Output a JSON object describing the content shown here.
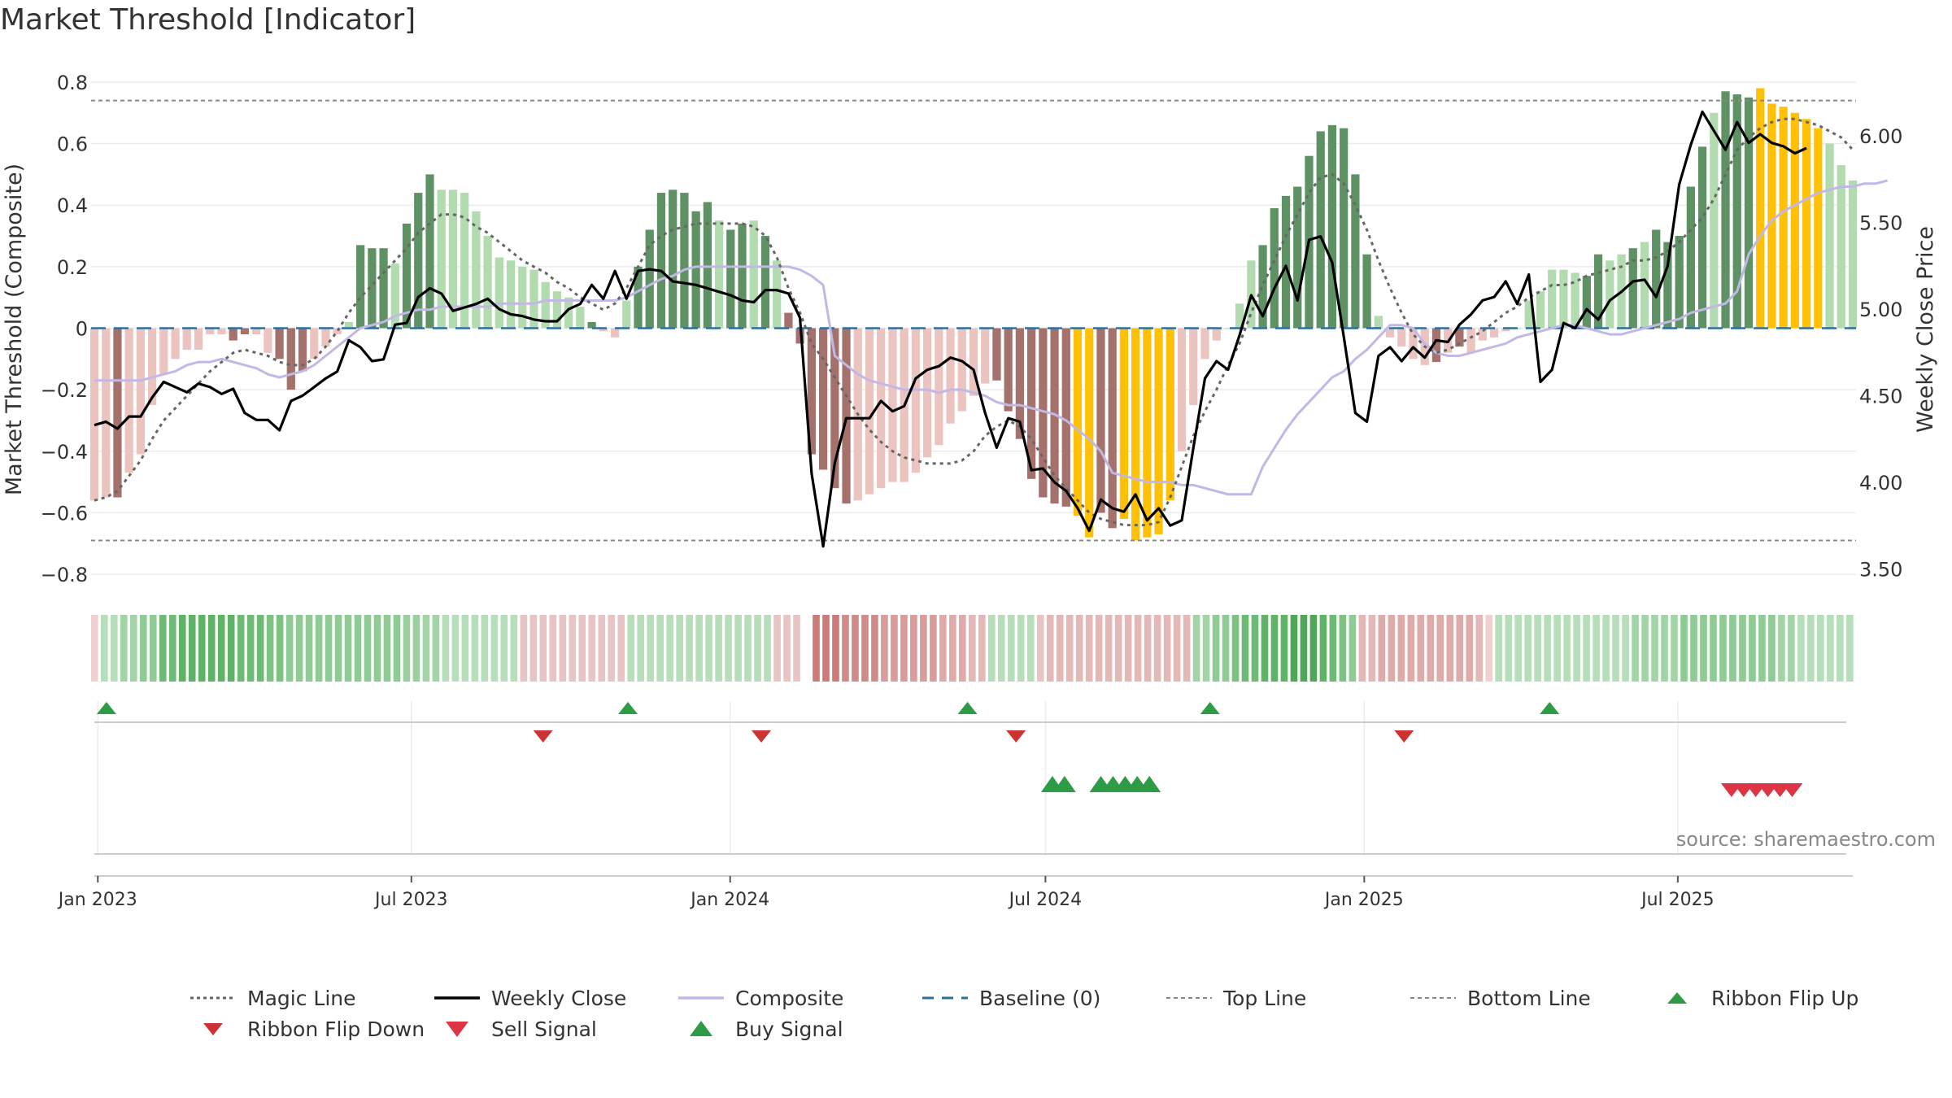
{
  "chart_data": {
    "type": "bar",
    "title": "Market Threshold [Indicator]",
    "ylabel_left": "Market Threshold (Composite)",
    "ylabel_right": "Weekly Close Price",
    "source_text": "source: sharemaestro.com",
    "x_start": "2022-12-30",
    "x_end": "2025-10-10",
    "xticks": [
      "2023-01-01",
      "2023-07-01",
      "2024-01-01",
      "2024-07-01",
      "2025-01-01",
      "2025-07-01"
    ],
    "xtick_labels": [
      "Jan 2023",
      "Jul 2023",
      "Jan 2024",
      "Jul 2024",
      "Jan 2025",
      "Jul 2025"
    ],
    "ylim_left": [
      -0.85,
      0.85
    ],
    "yticks_left": [
      0.8,
      0.6,
      0.4,
      0.2,
      0,
      -0.2,
      -0.4,
      -0.6,
      -0.8
    ],
    "ytick_labels_left": [
      "0.8",
      "0.6",
      "0.4",
      "0.2",
      "0",
      "−0.2",
      "−0.4",
      "−0.6",
      "−0.8"
    ],
    "ylim_right": [
      3.38,
      6.4
    ],
    "yticks_right": [
      6.0,
      5.5,
      5.0,
      4.5,
      4.0,
      3.5
    ],
    "ytick_labels_right": [
      "6.00",
      "5.50",
      "5.00",
      "4.50",
      "4.00",
      "3.50"
    ],
    "top_line": 0.74,
    "bottom_line": -0.69,
    "composite_bars": [
      -0.56,
      -0.55,
      -0.55,
      -0.47,
      -0.41,
      -0.25,
      -0.15,
      -0.1,
      -0.07,
      -0.07,
      -0.02,
      -0.02,
      -0.04,
      -0.02,
      -0.02,
      -0.08,
      -0.1,
      -0.2,
      -0.14,
      -0.1,
      -0.06,
      -0.02,
      0.02,
      0.27,
      0.26,
      0.26,
      0.21,
      0.34,
      0.44,
      0.5,
      0.45,
      0.45,
      0.44,
      0.38,
      0.3,
      0.23,
      0.22,
      0.2,
      0.19,
      0.15,
      0.12,
      0.1,
      0.07,
      0.02,
      -0.01,
      -0.03,
      0.09,
      0.2,
      0.32,
      0.44,
      0.45,
      0.44,
      0.38,
      0.41,
      0.35,
      0.32,
      0.34,
      0.35,
      0.3,
      0.22,
      0.05,
      -0.05,
      -0.41,
      -0.46,
      -0.52,
      -0.57,
      -0.56,
      -0.54,
      -0.52,
      -0.5,
      -0.5,
      -0.47,
      -0.42,
      -0.38,
      -0.31,
      -0.27,
      -0.22,
      -0.18,
      -0.17,
      -0.27,
      -0.36,
      -0.49,
      -0.55,
      -0.57,
      -0.58,
      -0.61,
      -0.68,
      -0.6,
      -0.65,
      -0.62,
      -0.69,
      -0.68,
      -0.67,
      -0.56,
      -0.4,
      -0.25,
      -0.1,
      -0.04,
      0,
      0.08,
      0.22,
      0.27,
      0.39,
      0.43,
      0.46,
      0.56,
      0.64,
      0.66,
      0.65,
      0.5,
      0.24,
      0.04,
      -0.03,
      -0.06,
      -0.1,
      -0.12,
      -0.11,
      -0.08,
      -0.06,
      -0.08,
      -0.04,
      -0.03,
      -0.01,
      0,
      0.09,
      0.12,
      0.19,
      0.19,
      0.18,
      0.17,
      0.24,
      0.22,
      0.24,
      0.26,
      0.28,
      0.32,
      0.28,
      0.3,
      0.46,
      0.59,
      0.7,
      0.77,
      0.76,
      0.75,
      0.78,
      0.73,
      0.72,
      0.7,
      0.68,
      0.65,
      0.6,
      0.53,
      0.48
    ],
    "bar_color_codes": "LLDLLLLLLLLLDDLLDDDLLLLGGGLGGGLLLLLLLLLLLLLGLLLGGGGGGGLGGLGLDDDDDDLLLLLLLLLLLLDDDDDDDYYDDYYYYYLLLLLLLGGGGGGGGGGLLLLLDLDLLLLLLLLLLGGLLGLGGGGGLGGGYYYYYYLLLLL",
    "weekly_close": [
      4.33,
      4.35,
      4.31,
      4.38,
      4.38,
      4.49,
      4.58,
      4.55,
      4.52,
      4.57,
      4.55,
      4.51,
      4.54,
      4.4,
      4.36,
      4.36,
      4.3,
      4.47,
      4.5,
      4.55,
      4.6,
      4.64,
      4.82,
      4.78,
      4.7,
      4.71,
      4.91,
      4.92,
      5.07,
      5.12,
      5.09,
      4.99,
      5.01,
      5.03,
      5.06,
      5.0,
      4.97,
      4.96,
      4.94,
      4.93,
      4.93,
      5.0,
      5.03,
      5.14,
      5.06,
      5.22,
      5.06,
      5.22,
      5.23,
      5.22,
      5.16,
      5.15,
      5.14,
      5.12,
      5.1,
      5.08,
      5.05,
      5.04,
      5.11,
      5.11,
      5.09,
      4.95,
      4.05,
      3.63,
      4.11,
      4.37,
      4.37,
      4.37,
      4.47,
      4.41,
      4.44,
      4.6,
      4.65,
      4.67,
      4.72,
      4.7,
      4.65,
      4.4,
      4.2,
      4.37,
      4.35,
      4.07,
      4.08,
      4.0,
      3.95,
      3.85,
      3.72,
      3.9,
      3.85,
      3.83,
      3.93,
      3.78,
      3.85,
      3.75,
      3.78,
      4.2,
      4.6,
      4.7,
      4.65,
      4.85,
      5.08,
      4.96,
      5.12,
      5.25,
      5.05,
      5.4,
      5.42,
      5.27,
      4.84,
      4.4,
      4.35,
      4.73,
      4.78,
      4.7,
      4.78,
      4.72,
      4.82,
      4.81,
      4.91,
      4.97,
      5.05,
      5.07,
      5.16,
      5.03,
      5.2,
      4.58,
      4.65,
      4.92,
      4.89,
      5.0,
      4.94,
      5.05,
      5.1,
      5.16,
      5.17,
      5.07,
      5.25,
      5.72,
      5.95,
      6.14,
      6.03,
      5.92,
      6.08,
      5.96,
      6.01,
      5.96,
      5.94,
      5.9,
      5.93
    ],
    "composite_line": [
      -0.17,
      -0.17,
      -0.17,
      -0.17,
      -0.17,
      -0.16,
      -0.15,
      -0.14,
      -0.12,
      -0.11,
      -0.11,
      -0.1,
      -0.11,
      -0.12,
      -0.13,
      -0.15,
      -0.16,
      -0.15,
      -0.14,
      -0.12,
      -0.09,
      -0.06,
      -0.03,
      0,
      0.01,
      0.02,
      0.04,
      0.05,
      0.06,
      0.06,
      0.07,
      0.07,
      0.07,
      0.07,
      0.07,
      0.08,
      0.08,
      0.08,
      0.08,
      0.09,
      0.09,
      0.09,
      0.09,
      0.09,
      0.09,
      0.09,
      0.1,
      0.12,
      0.14,
      0.16,
      0.17,
      0.19,
      0.2,
      0.2,
      0.2,
      0.2,
      0.2,
      0.2,
      0.2,
      0.2,
      0.2,
      0.19,
      0.17,
      0.14,
      -0.09,
      -0.12,
      -0.15,
      -0.17,
      -0.18,
      -0.19,
      -0.2,
      -0.2,
      -0.2,
      -0.21,
      -0.2,
      -0.2,
      -0.21,
      -0.22,
      -0.24,
      -0.25,
      -0.25,
      -0.26,
      -0.27,
      -0.28,
      -0.3,
      -0.33,
      -0.36,
      -0.4,
      -0.47,
      -0.48,
      -0.49,
      -0.5,
      -0.5,
      -0.5,
      -0.51,
      -0.51,
      -0.52,
      -0.53,
      -0.54,
      -0.54,
      -0.54,
      -0.45,
      -0.39,
      -0.33,
      -0.28,
      -0.24,
      -0.2,
      -0.16,
      -0.14,
      -0.1,
      -0.07,
      -0.03,
      0.01,
      0.01,
      0,
      -0.05,
      -0.08,
      -0.09,
      -0.09,
      -0.08,
      -0.07,
      -0.06,
      -0.05,
      -0.03,
      -0.02,
      -0.01,
      0,
      0.01,
      0.01,
      0.0,
      -0.01,
      -0.02,
      -0.02,
      -0.01,
      0,
      0.01,
      0.02,
      0.03,
      0.05,
      0.06,
      0.07,
      0.08,
      0.12,
      0.24,
      0.3,
      0.35,
      0.38,
      0.4,
      0.42,
      0.44,
      0.45,
      0.46,
      0.46,
      0.47,
      0.47,
      0.48
    ],
    "magic_line": [
      -0.56,
      -0.55,
      -0.53,
      -0.48,
      -0.43,
      -0.36,
      -0.3,
      -0.26,
      -0.22,
      -0.18,
      -0.14,
      -0.11,
      -0.08,
      -0.07,
      -0.08,
      -0.09,
      -0.11,
      -0.12,
      -0.12,
      -0.1,
      -0.06,
      -0.01,
      0.05,
      0.1,
      0.14,
      0.18,
      0.22,
      0.26,
      0.31,
      0.34,
      0.37,
      0.37,
      0.36,
      0.33,
      0.31,
      0.28,
      0.25,
      0.22,
      0.2,
      0.18,
      0.15,
      0.13,
      0.1,
      0.08,
      0.06,
      0.08,
      0.13,
      0.2,
      0.27,
      0.3,
      0.32,
      0.33,
      0.34,
      0.34,
      0.34,
      0.34,
      0.34,
      0.33,
      0.3,
      0.23,
      0.13,
      0.05,
      -0.05,
      -0.1,
      -0.16,
      -0.22,
      -0.28,
      -0.33,
      -0.37,
      -0.4,
      -0.42,
      -0.43,
      -0.44,
      -0.44,
      -0.44,
      -0.43,
      -0.4,
      -0.35,
      -0.32,
      -0.3,
      -0.32,
      -0.36,
      -0.42,
      -0.48,
      -0.52,
      -0.56,
      -0.6,
      -0.62,
      -0.63,
      -0.64,
      -0.64,
      -0.64,
      -0.63,
      -0.55,
      -0.45,
      -0.35,
      -0.27,
      -0.2,
      -0.12,
      -0.05,
      0.05,
      0.14,
      0.22,
      0.3,
      0.37,
      0.44,
      0.49,
      0.5,
      0.47,
      0.4,
      0.32,
      0.22,
      0.13,
      0.05,
      -0.02,
      -0.06,
      -0.08,
      -0.07,
      -0.05,
      -0.03,
      -0.01,
      0.02,
      0.05,
      0.07,
      0.1,
      0.12,
      0.14,
      0.14,
      0.15,
      0.17,
      0.18,
      0.19,
      0.2,
      0.22,
      0.22,
      0.23,
      0.25,
      0.28,
      0.32,
      0.36,
      0.42,
      0.5,
      0.58,
      0.62,
      0.65,
      0.67,
      0.68,
      0.68,
      0.67,
      0.66,
      0.64,
      0.62,
      0.58
    ],
    "ribbon_colors": [
      "#f0d0d0",
      "#b7deba",
      "#b7deba",
      "#a3d4a7",
      "#a3d4a7",
      "#8fcb94",
      "#8fcb94",
      "#6cba73",
      "#6cba73",
      "#5fb366",
      "#5fb366",
      "#5fb366",
      "#5fb366",
      "#5fb366",
      "#5fb366",
      "#6cba73",
      "#6cba73",
      "#6cba73",
      "#7cc382",
      "#7cc382",
      "#8fcb94",
      "#8fcb94",
      "#8fcb94",
      "#8fcb94",
      "#8fcb94",
      "#8fcb94",
      "#8fcb94",
      "#8fcb94",
      "#8fcb94",
      "#8fcb94",
      "#8fcb94",
      "#8fcb94",
      "#9ccf9f",
      "#9ccf9f",
      "#a3d4a7",
      "#a3d4a7",
      "#b7deba",
      "#b7deba",
      "#b7deba",
      "#b7deba",
      "#b7deba",
      "#b7deba",
      "#b7deba",
      "#b7deba",
      "#e9c4c4",
      "#e9c4c4",
      "#e9c4c4",
      "#e9c4c4",
      "#e9c4c4",
      "#e9c4c4",
      "#e9c4c4",
      "#e9c4c4",
      "#e9c4c4",
      "#e9c4c4",
      "#e9c4c4",
      "#b7deba",
      "#b7deba",
      "#b7deba",
      "#b7deba",
      "#b7deba",
      "#b7deba",
      "#b7deba",
      "#b7deba",
      "#b7deba",
      "#b7deba",
      "#b7deba",
      "#b7deba",
      "#b7deba",
      "#b7deba",
      "#b7deba",
      "#e9c4c4",
      "#e9c4c4",
      "#e9c4c4",
      "#ffffff",
      "#cc7a7a",
      "#cc7a7a",
      "#cc7a7a",
      "#d08a8a",
      "#d08a8a",
      "#d08a8a",
      "#d08a8a",
      "#d99c9c",
      "#d99c9c",
      "#d99c9c",
      "#d99c9c",
      "#d99c9c",
      "#d99c9c",
      "#dfaaaa",
      "#dfaaaa",
      "#dfaaaa",
      "#e5b8b8",
      "#e5b8b8",
      "#b7deba",
      "#b7deba",
      "#b7deba",
      "#b7deba",
      "#b7deba",
      "#e9c4c4",
      "#e5b8b8",
      "#e5b8b8",
      "#e5b8b8",
      "#e5b8b8",
      "#e5b8b8",
      "#e5b8b8",
      "#e5b8b8",
      "#e5b8b8",
      "#e5b8b8",
      "#e5b8b8",
      "#e5b8b8",
      "#e5b8b8",
      "#e5b8b8",
      "#e5b8b8",
      "#e5b8b8",
      "#a3d4a7",
      "#a3d4a7",
      "#8fcb94",
      "#8fcb94",
      "#7cc382",
      "#6cba73",
      "#6cba73",
      "#5fb366",
      "#5fb366",
      "#5fb366",
      "#4fa857",
      "#4fa857",
      "#4fa857",
      "#5fb366",
      "#6cba73",
      "#7cc382",
      "#8fcb94",
      "#e5b8b8",
      "#e5b8b8",
      "#dfaaaa",
      "#dfaaaa",
      "#dfaaaa",
      "#dfaaaa",
      "#dfaaaa",
      "#dfaaaa",
      "#dfaaaa",
      "#dfaaaa",
      "#dfaaaa",
      "#dfaaaa",
      "#e5b8b8",
      "#f0d0d0",
      "#b7deba",
      "#b7deba",
      "#b7deba",
      "#b7deba",
      "#b7deba",
      "#b7deba",
      "#b7deba",
      "#b7deba",
      "#b7deba",
      "#b7deba",
      "#b7deba",
      "#b7deba",
      "#b7deba",
      "#b7deba",
      "#a3d4a7",
      "#a3d4a7",
      "#a3d4a7",
      "#a3d4a7",
      "#a3d4a7",
      "#8fcb94",
      "#8fcb94",
      "#8fcb94",
      "#8fcb94",
      "#8fcb94",
      "#8fcb94",
      "#8fcb94",
      "#8fcb94",
      "#8fcb94",
      "#8fcb94",
      "#a3d4a7",
      "#a3d4a7",
      "#b7deba",
      "#b7deba",
      "#b7deba",
      "#b7deba",
      "#b7deba",
      "#b7deba"
    ],
    "ribbon_flip_up": [
      "2023-01-06",
      "2023-11-03",
      "2024-05-17",
      "2024-10-04",
      "2025-04-18"
    ],
    "ribbon_flip_down": [
      "2023-09-15",
      "2024-01-19",
      "2024-06-14",
      "2025-01-24"
    ],
    "buy_signals": [
      "2024-07-05",
      "2024-07-12",
      "2024-08-02",
      "2024-08-09",
      "2024-08-16",
      "2024-08-23",
      "2024-08-30"
    ],
    "sell_signals": [
      "2025-08-01",
      "2025-08-08",
      "2025-08-15",
      "2025-08-22",
      "2025-08-29",
      "2025-09-05"
    ],
    "colors": {
      "green_dark": "#5e9163",
      "green_light": "#b3dbb0",
      "red_dark": "#a4716d",
      "red_light": "#ebc4c0",
      "yellow": "#ffc107",
      "weekly_close": "#000000",
      "composite_line": "#c2b8e6",
      "magic_line": "#666666",
      "baseline": "#2f6f9f",
      "threshold_lines": "#888888",
      "flip_up": "#2e9b46",
      "flip_down": "#cc3333",
      "buy": "#2e9b46",
      "sell": "#dc3545"
    },
    "legend": [
      {
        "label": "Magic Line",
        "symbol": "dotted-line",
        "color": "#666666"
      },
      {
        "label": "Weekly Close",
        "symbol": "solid-line",
        "color": "#000000"
      },
      {
        "label": "Composite",
        "symbol": "solid-line",
        "color": "#c2b8e6"
      },
      {
        "label": "Baseline (0)",
        "symbol": "dashed-line",
        "color": "#2f6f9f"
      },
      {
        "label": "Top Line",
        "symbol": "dashed-thin",
        "color": "#888888"
      },
      {
        "label": "Bottom Line",
        "symbol": "dashed-thin",
        "color": "#888888"
      },
      {
        "label": "Ribbon Flip Up",
        "symbol": "triangle-up",
        "color": "#2e9b46"
      },
      {
        "label": "Ribbon Flip Down",
        "symbol": "triangle-down",
        "color": "#cc3333"
      },
      {
        "label": "Sell Signal",
        "symbol": "triangle-down-large",
        "color": "#dc3545"
      },
      {
        "label": "Buy Signal",
        "symbol": "triangle-up-large",
        "color": "#2e9b46"
      }
    ]
  }
}
